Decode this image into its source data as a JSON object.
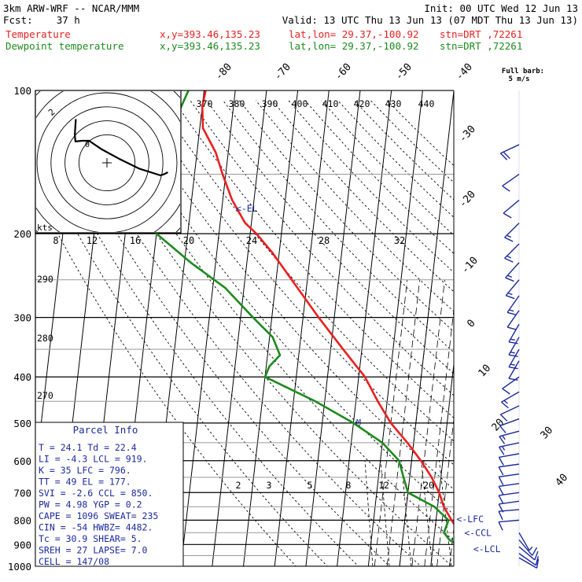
{
  "header": {
    "model": "3km ARW-WRF -- NCAR/MMM",
    "init": "Init: 00 UTC Wed 12 Jun 13",
    "fcst": "Fcst:    37 h",
    "valid": "Valid: 13 UTC Thu 13 Jun 13 (07 MDT Thu 13 Jun 13)",
    "temp_label": "Temperature",
    "dew_label": "Dewpoint temperature",
    "xy": "x,y=393.46,135.23",
    "latlon": "lat,lon= 29.37,-100.92",
    "stn": "stn=DRT ,72261",
    "full_barb": "Full barb:",
    "barb_unit": "5 m/s"
  },
  "colors": {
    "temperature": "#e82020",
    "dewpoint": "#1e8a1e",
    "wind": "#1c2a9c",
    "parcel": "#1c2a9c",
    "grid": "#000000"
  },
  "chart_data": {
    "type": "line",
    "diagram": "skew-T log-P",
    "pressure_levels": [
      "100",
      "200",
      "300",
      "400",
      "500",
      "600",
      "700",
      "800",
      "900",
      "1000"
    ],
    "isotherm_labels": [
      "-80",
      "-70",
      "-60",
      "-50",
      "-40",
      "-30",
      "-20",
      "-10",
      "0",
      "10",
      "20",
      "30",
      "40"
    ],
    "theta_labels": [
      "370",
      "380",
      "390",
      "400",
      "410",
      "420",
      "430",
      "440"
    ],
    "theta_side_labels": [
      "290",
      "280",
      "270"
    ],
    "mixing_ratio_labels": [
      "2",
      "3",
      "5",
      "8",
      "12",
      "20"
    ],
    "hodo_ring_labels": [
      "8",
      "12",
      "16",
      "20",
      "24",
      "28",
      "32"
    ],
    "hodo_ring_values": [
      8,
      12,
      16,
      20,
      24,
      28,
      32
    ],
    "hodo_unit": "kts",
    "hodo_points": [
      [
        -8.9,
        12.5
      ],
      [
        -9.2,
        7.9
      ],
      [
        -9,
        6.1
      ],
      [
        -7.2,
        6.3
      ],
      [
        -5.1,
        6.3
      ],
      [
        -1.6,
        3.9
      ],
      [
        3.4,
        1.2
      ],
      [
        9.3,
        -1.7
      ],
      [
        15.3,
        -3.6
      ],
      [
        16.5,
        -3.2
      ],
      [
        17.4,
        -2.7
      ]
    ],
    "hodo_labels": [
      "2",
      "0"
    ],
    "temperature": [
      {
        "p": 100,
        "t": -79.5
      },
      {
        "p": 108,
        "t": -80
      },
      {
        "p": 120,
        "t": -79
      },
      {
        "p": 135,
        "t": -74
      },
      {
        "p": 150,
        "t": -71
      },
      {
        "p": 170,
        "t": -67
      },
      {
        "p": 190,
        "t": -62
      },
      {
        "p": 200,
        "t": -58
      },
      {
        "p": 220,
        "t": -52
      },
      {
        "p": 250,
        "t": -45
      },
      {
        "p": 300,
        "t": -35
      },
      {
        "p": 350,
        "t": -26
      },
      {
        "p": 400,
        "t": -18
      },
      {
        "p": 450,
        "t": -13
      },
      {
        "p": 500,
        "t": -8
      },
      {
        "p": 550,
        "t": -2
      },
      {
        "p": 600,
        "t": 3
      },
      {
        "p": 650,
        "t": 7
      },
      {
        "p": 700,
        "t": 10
      },
      {
        "p": 750,
        "t": 12
      },
      {
        "p": 800,
        "t": 15
      },
      {
        "p": 850,
        "t": 18
      },
      {
        "p": 880,
        "t": 21
      },
      {
        "p": 900,
        "t": 21
      },
      {
        "p": 925,
        "t": 21.5
      },
      {
        "p": 950,
        "t": 22.5
      },
      {
        "p": 960,
        "t": 24.1
      }
    ],
    "dewpoint": [
      {
        "p": 100,
        "t": -85
      },
      {
        "p": 120,
        "t": -89
      },
      {
        "p": 140,
        "t": -94
      },
      {
        "p": 155,
        "t": -99
      },
      {
        "p": 170,
        "t": -99
      },
      {
        "p": 190,
        "t": -94
      },
      {
        "p": 200,
        "t": -90
      },
      {
        "p": 230,
        "t": -78
      },
      {
        "p": 260,
        "t": -66
      },
      {
        "p": 300,
        "t": -56
      },
      {
        "p": 330,
        "t": -49
      },
      {
        "p": 360,
        "t": -46
      },
      {
        "p": 380,
        "t": -49
      },
      {
        "p": 400,
        "t": -50
      },
      {
        "p": 450,
        "t": -33
      },
      {
        "p": 500,
        "t": -20
      },
      {
        "p": 550,
        "t": -10
      },
      {
        "p": 600,
        "t": -4
      },
      {
        "p": 650,
        "t": -2
      },
      {
        "p": 700,
        "t": 0
      },
      {
        "p": 750,
        "t": 9
      },
      {
        "p": 800,
        "t": 14
      },
      {
        "p": 850,
        "t": 13
      },
      {
        "p": 880,
        "t": 15
      },
      {
        "p": 920,
        "t": 20
      },
      {
        "p": 945,
        "t": 22
      },
      {
        "p": 960,
        "t": 22.4
      }
    ],
    "parcel_levels": [
      {
        "label": "<-EL",
        "p": 177
      },
      {
        "label": "<-LFC",
        "p": 796
      },
      {
        "label": "<-CCL",
        "p": 850
      },
      {
        "label": "<-LCL",
        "p": 919
      }
    ],
    "wind_barbs": [
      {
        "p": 130,
        "dir": 245,
        "spd": 10
      },
      {
        "p": 150,
        "dir": 235,
        "spd": 5
      },
      {
        "p": 170,
        "dir": 230,
        "spd": 7
      },
      {
        "p": 190,
        "dir": 225,
        "spd": 9
      },
      {
        "p": 210,
        "dir": 225,
        "spd": 8
      },
      {
        "p": 230,
        "dir": 222,
        "spd": 9
      },
      {
        "p": 250,
        "dir": 220,
        "spd": 8
      },
      {
        "p": 270,
        "dir": 215,
        "spd": 8
      },
      {
        "p": 290,
        "dir": 215,
        "spd": 7
      },
      {
        "p": 310,
        "dir": 210,
        "spd": 8
      },
      {
        "p": 330,
        "dir": 210,
        "spd": 9
      },
      {
        "p": 350,
        "dir": 210,
        "spd": 8
      },
      {
        "p": 370,
        "dir": 210,
        "spd": 7
      },
      {
        "p": 400,
        "dir": 235,
        "spd": 7
      },
      {
        "p": 430,
        "dir": 240,
        "spd": 8
      },
      {
        "p": 460,
        "dir": 245,
        "spd": 7
      },
      {
        "p": 490,
        "dir": 250,
        "spd": 7
      },
      {
        "p": 520,
        "dir": 255,
        "spd": 8
      },
      {
        "p": 550,
        "dir": 258,
        "spd": 8
      },
      {
        "p": 580,
        "dir": 260,
        "spd": 7
      },
      {
        "p": 610,
        "dir": 262,
        "spd": 7
      },
      {
        "p": 640,
        "dir": 262,
        "spd": 6
      },
      {
        "p": 670,
        "dir": 262,
        "spd": 6
      },
      {
        "p": 700,
        "dir": 262,
        "spd": 7
      },
      {
        "p": 730,
        "dir": 262,
        "spd": 6
      },
      {
        "p": 760,
        "dir": 265,
        "spd": 5
      },
      {
        "p": 800,
        "dir": 265,
        "spd": 5
      },
      {
        "p": 850,
        "dir": 150,
        "spd": 4
      },
      {
        "p": 880,
        "dir": 140,
        "spd": 5
      },
      {
        "p": 910,
        "dir": 130,
        "spd": 6
      },
      {
        "p": 940,
        "dir": 125,
        "spd": 6
      },
      {
        "p": 960,
        "dir": 120,
        "spd": 5
      }
    ]
  },
  "parcel_info": {
    "title": "Parcel Info",
    "rows": [
      "T  =    24.1  Td  =  22.4",
      "LI  =   -4.3  LCL  =  919.",
      "K  =     35  LFC  =  796.",
      "TT  =     49  EL  =   177.",
      "SVI  =  -2.6  CCL  =  850.",
      "PW  =   4.98  YGP  =   0.2",
      "CAPE =  1096  SWEAT=   235",
      "CIN  =   -54  HWBZ= 4482.",
      "Tc  =   30.9  SHEAR=    5.",
      "SREH =    27  LAPSE=   7.0",
      "CELL = 147/08"
    ]
  }
}
